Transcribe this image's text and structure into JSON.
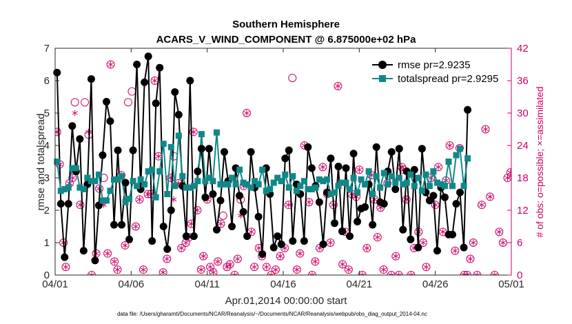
{
  "chart_data": {
    "type": "line",
    "title": "Southern Hemisphere",
    "subtitle": "ACARS_V_WIND_COMPONENT @ 6.875000e+02 hPa",
    "xlabel": "Apr.01,2014 00:00:00 start",
    "ylabel": "rmse and totalspread",
    "ylabel_right": "# of obs: o=possible; ×=assimilated",
    "footer": "data file: /Users/gharamti/Documents/NCAR/Reanalysis/~/Documents/NCAR/Reanalysis/webpub/obs_diag_output_2014-04.nc",
    "xlim": [
      0,
      30
    ],
    "ylim": [
      0,
      7
    ],
    "ylim_right": [
      0,
      42
    ],
    "x_ticks": [
      0,
      5,
      10,
      15,
      20,
      25,
      30
    ],
    "x_tick_labels": [
      "04/01",
      "04/06",
      "04/11",
      "04/16",
      "04/21",
      "04/26",
      "05/01"
    ],
    "y_ticks": [
      0,
      1,
      2,
      3,
      4,
      5,
      6,
      7
    ],
    "y_tick_labels": [
      "0",
      "1",
      "2",
      "3",
      "4",
      "5",
      "6",
      "7"
    ],
    "y_ticks_right": [
      0,
      6,
      12,
      18,
      24,
      30,
      36,
      42
    ],
    "y_tick_labels_right": [
      "0",
      "6",
      "12",
      "18",
      "24",
      "30",
      "36",
      "42"
    ],
    "colors": {
      "rmse": "#000000",
      "spread": "#118888",
      "obs": "#cc0066"
    },
    "series": [
      {
        "name": "rmse",
        "legend": "rmse pr=2.9235",
        "values": [
          6.25,
          2.2,
          0.55,
          2.2,
          4.6,
          3.2,
          4.2,
          0.75,
          2.8,
          6.05,
          0.45,
          2.15,
          3.7,
          5.35,
          4.75,
          1.55,
          3.85,
          1.55,
          2.85,
          1.1,
          3.85,
          6.5,
          2.65,
          5.95,
          6.75,
          1.05,
          5.3,
          6.4,
          1.5,
          0.8,
          2.0,
          5.65,
          4.95,
          2.75,
          1.2,
          6.0,
          1.2,
          3.2,
          3.9,
          2.4,
          3.9,
          2.5,
          1.4,
          2.3,
          3.8,
          2.9,
          1.5,
          3.3,
          2.45,
          1.95,
          1.2,
          3.8,
          2.7,
          1.8,
          0.65,
          3.3,
          2.5,
          0.85,
          1.2,
          0.95,
          3.6,
          3.85,
          1.05,
          2.8,
          2.5,
          1.05,
          3.95,
          3.3,
          2.75,
          2.25,
          0.95,
          2.55,
          3.6,
          1.6,
          3.35,
          1.35,
          3.3,
          1.2,
          3.75,
          1.65,
          2.05,
          2.1,
          2.8,
          1.55,
          3.95,
          2.25,
          2.2,
          3.2,
          3.8,
          2.65,
          3.9,
          1.4,
          3.2,
          1.1,
          3.25,
          0.85,
          3.9,
          2.55,
          2.3,
          2.45,
          0.75,
          2.7,
          2.4,
          1.25,
          1.25,
          2.2,
          2.55,
          0.85,
          5.1
        ]
      },
      {
        "name": "totalspread",
        "legend": "totalspread pr=2.9295",
        "values": [
          3.5,
          2.6,
          2.65,
          2.7,
          3.3,
          3.3,
          2.7,
          2.65,
          3.0,
          2.9,
          2.9,
          3.1,
          2.3,
          2.3,
          2.6,
          2.95,
          2.95,
          3.05,
          2.25,
          2.35,
          2.9,
          2.75,
          2.95,
          2.8,
          3.2,
          3.25,
          2.4,
          3.2,
          4.05,
          2.5,
          3.95,
          2.75,
          4.3,
          3.05,
          2.7,
          2.7,
          2.75,
          2.9,
          4.35,
          2.9,
          3.0,
          2.9,
          4.4,
          2.8,
          2.8,
          2.8,
          3.0,
          2.8,
          3.25,
          2.85,
          2.8,
          2.7,
          2.9,
          2.8,
          3.25,
          2.6,
          2.65,
          2.85,
          3.0,
          2.9,
          3.1,
          2.7,
          3.05,
          2.6,
          2.75,
          2.9,
          2.65,
          2.65,
          2.7,
          2.95,
          2.9,
          2.95,
          2.5,
          2.55,
          2.75,
          2.85,
          2.85,
          2.65,
          3.0,
          2.55,
          2.95,
          2.8,
          3.2,
          2.5,
          3.05,
          2.7,
          3.15,
          2.8,
          3.05,
          2.85,
          3.0,
          2.8,
          2.85,
          3.1,
          2.75,
          3.0,
          2.6,
          3.1,
          2.75,
          3.2,
          2.85,
          2.8,
          2.75,
          3.5,
          2.75,
          3.7,
          3.9,
          2.75,
          3.6
        ]
      }
    ],
    "obs_possible": [
      [
        0.125,
        26.5
      ],
      [
        0.3,
        20.5
      ],
      [
        0.55,
        6
      ],
      [
        0.7,
        1.5
      ],
      [
        0.95,
        17
      ],
      [
        1.15,
        18
      ],
      [
        1.3,
        32
      ],
      [
        1.65,
        13
      ],
      [
        1.95,
        32
      ],
      [
        2.2,
        26
      ],
      [
        2.4,
        0
      ],
      [
        2.7,
        4
      ],
      [
        2.9,
        16
      ],
      [
        3.2,
        18
      ],
      [
        3.45,
        4
      ],
      [
        3.65,
        39
      ],
      [
        3.9,
        2.5
      ],
      [
        4.1,
        1
      ],
      [
        4.35,
        18.5
      ],
      [
        4.6,
        5.5
      ],
      [
        4.8,
        32
      ],
      [
        5.05,
        34
      ],
      [
        5.3,
        9
      ],
      [
        5.55,
        14
      ],
      [
        5.8,
        1
      ],
      [
        6.1,
        15
      ],
      [
        6.3,
        15
      ],
      [
        6.55,
        36
      ],
      [
        6.8,
        22
      ],
      [
        7.1,
        0.5
      ],
      [
        7.35,
        3
      ],
      [
        7.6,
        18
      ],
      [
        7.8,
        22
      ],
      [
        8.1,
        17
      ],
      [
        8.3,
        5
      ],
      [
        8.6,
        6
      ],
      [
        8.8,
        7
      ],
      [
        8.95,
        9.5
      ],
      [
        9.1,
        26.5
      ],
      [
        9.35,
        12
      ],
      [
        9.6,
        1
      ],
      [
        9.75,
        3.5
      ],
      [
        10.0,
        14
      ],
      [
        10.2,
        1.5
      ],
      [
        10.4,
        0.5
      ],
      [
        10.7,
        2.5
      ],
      [
        10.9,
        9.5
      ],
      [
        11.05,
        11
      ],
      [
        11.3,
        1.5
      ],
      [
        11.5,
        2
      ],
      [
        11.8,
        0
      ],
      [
        12.0,
        3
      ],
      [
        12.2,
        14
      ],
      [
        12.4,
        16.5
      ],
      [
        12.6,
        30
      ],
      [
        12.9,
        8
      ],
      [
        13.1,
        1.5
      ],
      [
        13.4,
        5
      ],
      [
        13.6,
        3.5
      ],
      [
        13.9,
        1.5
      ],
      [
        14.2,
        0
      ],
      [
        14.5,
        1
      ],
      [
        14.8,
        3.5
      ],
      [
        15.1,
        5
      ],
      [
        15.35,
        13
      ],
      [
        15.6,
        36.5
      ],
      [
        15.9,
        1
      ],
      [
        16.1,
        4
      ],
      [
        16.4,
        24
      ],
      [
        16.7,
        13.5
      ],
      [
        16.9,
        0
      ],
      [
        17.1,
        2.5
      ],
      [
        17.4,
        5
      ],
      [
        17.6,
        20
      ],
      [
        17.9,
        15
      ],
      [
        18.1,
        6
      ],
      [
        18.3,
        13
      ],
      [
        18.6,
        35
      ],
      [
        18.9,
        2
      ],
      [
        19.1,
        8
      ],
      [
        19.3,
        1
      ],
      [
        19.5,
        15
      ],
      [
        19.8,
        14.5
      ],
      [
        20.0,
        19.5
      ],
      [
        20.2,
        0
      ],
      [
        20.5,
        5
      ],
      [
        20.8,
        18.5
      ],
      [
        21.0,
        14
      ],
      [
        21.2,
        7
      ],
      [
        21.4,
        12.5
      ],
      [
        21.6,
        1
      ],
      [
        21.85,
        17
      ],
      [
        22.1,
        0
      ],
      [
        22.4,
        3.5
      ],
      [
        22.6,
        0
      ],
      [
        22.8,
        20
      ],
      [
        22.9,
        19.5
      ],
      [
        23.1,
        14
      ],
      [
        23.4,
        0
      ],
      [
        23.6,
        5
      ],
      [
        23.9,
        8
      ],
      [
        24.2,
        6
      ],
      [
        24.4,
        1.5
      ],
      [
        24.7,
        18
      ],
      [
        25.0,
        13
      ],
      [
        25.2,
        20
      ],
      [
        25.5,
        8
      ],
      [
        25.7,
        17.5
      ],
      [
        25.95,
        24
      ],
      [
        26.3,
        4.5
      ],
      [
        26.6,
        23.5
      ],
      [
        26.9,
        0
      ],
      [
        27.1,
        0
      ],
      [
        27.3,
        3
      ],
      [
        27.5,
        6
      ],
      [
        27.75,
        0
      ],
      [
        28.05,
        13
      ],
      [
        28.3,
        27
      ],
      [
        28.6,
        14.5
      ],
      [
        28.9,
        0
      ],
      [
        29.2,
        8
      ],
      [
        29.45,
        6
      ],
      [
        29.75,
        18
      ],
      [
        29.95,
        19
      ]
    ],
    "obs_assimilated": [
      [
        0.125,
        26.5
      ],
      [
        0.3,
        20.5
      ],
      [
        0.55,
        6
      ],
      [
        0.7,
        1.5
      ],
      [
        0.95,
        17
      ],
      [
        1.15,
        18
      ],
      [
        1.3,
        30
      ],
      [
        1.65,
        13
      ],
      [
        2.2,
        26.5
      ],
      [
        2.4,
        0
      ],
      [
        2.7,
        4
      ],
      [
        2.9,
        16
      ],
      [
        3.2,
        13
      ],
      [
        3.45,
        4
      ],
      [
        3.65,
        39
      ],
      [
        3.9,
        2.5
      ],
      [
        4.1,
        1
      ],
      [
        4.35,
        18.5
      ],
      [
        4.6,
        5.5
      ],
      [
        5.3,
        9
      ],
      [
        5.55,
        14
      ],
      [
        5.8,
        1
      ],
      [
        6.1,
        15
      ],
      [
        6.3,
        15
      ],
      [
        6.55,
        36
      ],
      [
        6.8,
        22
      ],
      [
        7.1,
        0.5
      ],
      [
        7.35,
        3
      ],
      [
        7.6,
        18
      ],
      [
        7.8,
        14
      ],
      [
        8.1,
        17
      ],
      [
        8.3,
        5
      ],
      [
        8.6,
        6
      ],
      [
        8.8,
        7
      ],
      [
        8.95,
        9.5
      ],
      [
        9.1,
        26.5
      ],
      [
        9.35,
        12
      ],
      [
        9.6,
        1
      ],
      [
        9.75,
        3.5
      ],
      [
        10.0,
        14
      ],
      [
        10.2,
        1.5
      ],
      [
        10.4,
        0.5
      ],
      [
        10.7,
        2.5
      ],
      [
        10.9,
        9.5
      ],
      [
        11.3,
        1.5
      ],
      [
        11.5,
        2
      ],
      [
        11.8,
        0
      ],
      [
        12.0,
        3
      ],
      [
        12.2,
        11
      ],
      [
        12.4,
        16.5
      ],
      [
        12.6,
        30
      ],
      [
        12.9,
        8
      ],
      [
        13.1,
        1.5
      ],
      [
        13.4,
        5
      ],
      [
        13.6,
        3.5
      ],
      [
        13.9,
        1.5
      ],
      [
        14.2,
        0
      ],
      [
        14.5,
        1
      ],
      [
        14.8,
        3.5
      ],
      [
        15.1,
        5
      ],
      [
        15.35,
        13
      ],
      [
        15.9,
        1
      ],
      [
        16.1,
        4
      ],
      [
        16.4,
        24
      ],
      [
        16.7,
        13.5
      ],
      [
        16.9,
        0
      ],
      [
        17.1,
        2.5
      ],
      [
        17.4,
        5
      ],
      [
        17.6,
        20
      ],
      [
        17.9,
        15
      ],
      [
        18.1,
        6
      ],
      [
        18.3,
        13
      ],
      [
        18.6,
        35
      ],
      [
        18.9,
        2
      ],
      [
        19.1,
        8
      ],
      [
        19.3,
        1
      ],
      [
        19.5,
        15
      ],
      [
        19.8,
        14.5
      ],
      [
        20.0,
        19.5
      ],
      [
        20.2,
        0
      ],
      [
        20.5,
        5
      ],
      [
        20.8,
        18.5
      ],
      [
        21.0,
        14
      ],
      [
        21.2,
        7
      ],
      [
        21.4,
        12.5
      ],
      [
        21.6,
        1
      ],
      [
        21.85,
        17
      ],
      [
        22.1,
        0
      ],
      [
        22.4,
        3.5
      ],
      [
        22.6,
        0
      ],
      [
        22.8,
        20
      ],
      [
        22.9,
        19.5
      ],
      [
        23.1,
        14
      ],
      [
        23.4,
        0
      ],
      [
        23.6,
        5
      ],
      [
        23.9,
        8
      ],
      [
        24.2,
        6
      ],
      [
        24.4,
        1.5
      ],
      [
        24.7,
        18
      ],
      [
        25.0,
        13
      ],
      [
        25.2,
        20
      ],
      [
        25.5,
        8
      ],
      [
        25.7,
        17.5
      ],
      [
        25.95,
        24
      ],
      [
        26.3,
        4.5
      ],
      [
        26.6,
        23.5
      ],
      [
        26.9,
        0
      ],
      [
        27.1,
        0
      ],
      [
        27.3,
        3
      ],
      [
        27.5,
        6
      ],
      [
        27.75,
        0
      ],
      [
        28.05,
        13
      ],
      [
        28.3,
        27
      ],
      [
        28.6,
        14.5
      ],
      [
        28.9,
        0
      ],
      [
        29.2,
        8
      ],
      [
        29.45,
        6
      ],
      [
        29.75,
        18
      ],
      [
        29.95,
        19
      ]
    ]
  }
}
